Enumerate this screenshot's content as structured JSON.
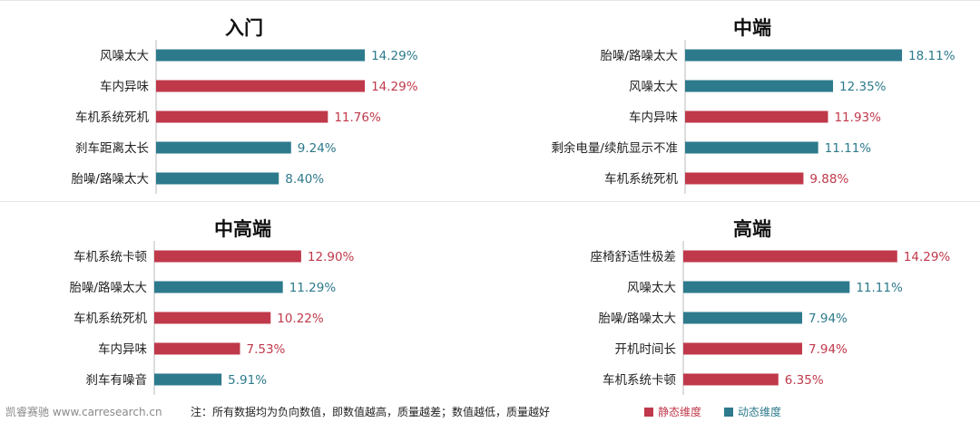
{
  "colors": {
    "static": "#c0394b",
    "dynamic": "#2d7a8c",
    "axis": "#bbbbbb",
    "value_text_static": "#c0394b",
    "value_text_dynamic": "#2d7a8c"
  },
  "chart_data": [
    {
      "type": "bar",
      "orientation": "horizontal",
      "title": "入门",
      "categories": [
        "风噪太大",
        "车内异味",
        "车机系统死机",
        "刹车距离太长",
        "胎噪/路噪太大"
      ],
      "values": [
        14.29,
        14.29,
        11.76,
        9.24,
        8.4
      ],
      "labels": [
        "14.29%",
        "14.29%",
        "11.76%",
        "9.24%",
        "8.40%"
      ],
      "dimension": [
        "dynamic",
        "static",
        "static",
        "dynamic",
        "dynamic"
      ]
    },
    {
      "type": "bar",
      "orientation": "horizontal",
      "title": "中端",
      "categories": [
        "胎噪/路噪太大",
        "风噪太大",
        "车内异味",
        "剩余电量/续航显示不准",
        "车机系统死机"
      ],
      "values": [
        18.11,
        12.35,
        11.93,
        11.11,
        9.88
      ],
      "labels": [
        "18.11%",
        "12.35%",
        "11.93%",
        "11.11%",
        "9.88%"
      ],
      "dimension": [
        "dynamic",
        "dynamic",
        "static",
        "dynamic",
        "static"
      ]
    },
    {
      "type": "bar",
      "orientation": "horizontal",
      "title": "中高端",
      "categories": [
        "车机系统卡顿",
        "胎噪/路噪太大",
        "车机系统死机",
        "车内异味",
        "刹车有噪音"
      ],
      "values": [
        12.9,
        11.29,
        10.22,
        7.53,
        5.91
      ],
      "labels": [
        "12.90%",
        "11.29%",
        "10.22%",
        "7.53%",
        "5.91%"
      ],
      "dimension": [
        "static",
        "dynamic",
        "static",
        "static",
        "dynamic"
      ]
    },
    {
      "type": "bar",
      "orientation": "horizontal",
      "title": "高端",
      "categories": [
        "座椅舒适性极差",
        "风噪太大",
        "胎噪/路噪太大",
        "开机时间长",
        "车机系统卡顿"
      ],
      "values": [
        14.29,
        11.11,
        7.94,
        7.94,
        6.35
      ],
      "labels": [
        "14.29%",
        "11.11%",
        "7.94%",
        "7.94%",
        "6.35%"
      ],
      "dimension": [
        "static",
        "dynamic",
        "dynamic",
        "static",
        "static"
      ]
    }
  ],
  "footer": {
    "source": "凯睿赛驰 www.carresearch.cn",
    "note": "注：所有数据均为负向数值，即数值越高，质量越差；数值越低，质量越好",
    "legend_static": "静态维度",
    "legend_dynamic": "动态维度"
  }
}
